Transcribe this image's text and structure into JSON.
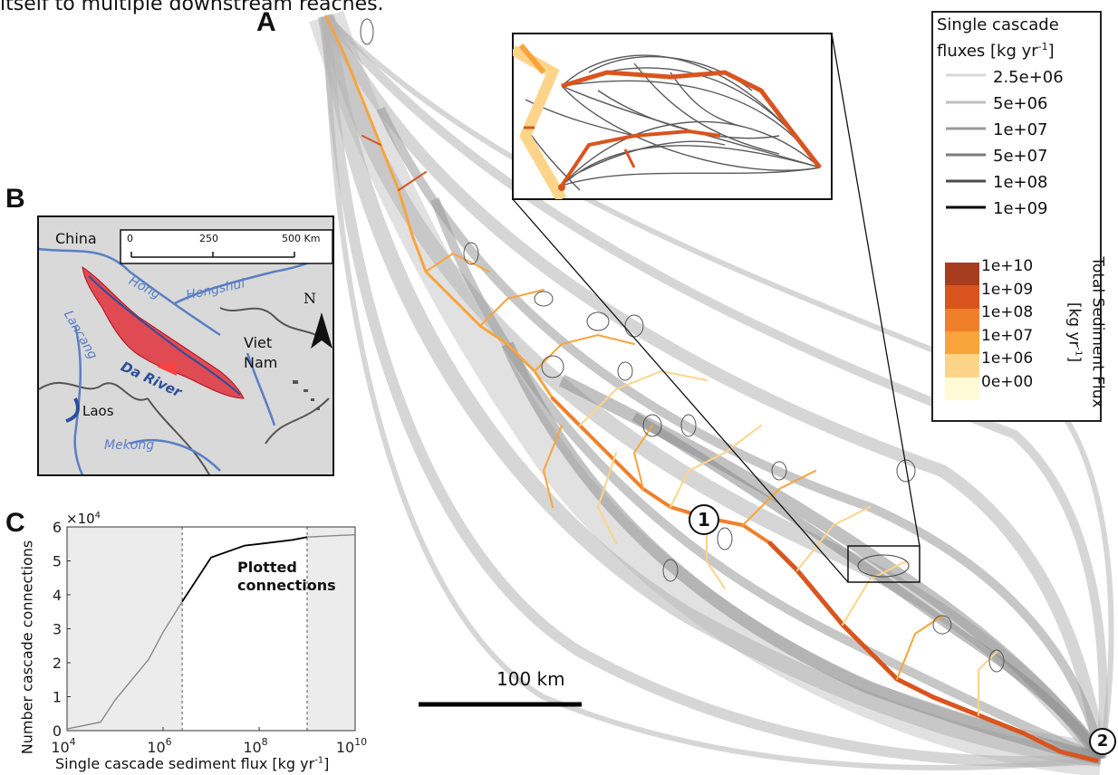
{
  "caption_line": "itself to multiple downstream reaches.",
  "panel_labels": {
    "a": "A",
    "b": "B",
    "c": "C"
  },
  "scale_bar_label": "100 km",
  "site_markers": [
    "1",
    "2"
  ],
  "legend_cascade": {
    "title_line1": "Single cascade",
    "title_line2": "fluxes [kg  yr",
    "title_sup": "-1",
    "title_end": "]",
    "entries": [
      {
        "label": "2.5e+06",
        "color": "#d9d9d9"
      },
      {
        "label": "5e+06",
        "color": "#bdbdbd"
      },
      {
        "label": "1e+07",
        "color": "#9a9a9a"
      },
      {
        "label": "5e+07",
        "color": "#7a7a7a"
      },
      {
        "label": "1e+08",
        "color": "#4a4a4a"
      },
      {
        "label": "1e+09",
        "color": "#000000"
      }
    ]
  },
  "legend_total": {
    "title": "Total Sediment Flux",
    "units": "[kg yr",
    "units_sup": "-1",
    "units_end": "]",
    "entries": [
      {
        "label": "1e+10",
        "color": "#a63d1e"
      },
      {
        "label": "1e+09",
        "color": "#d9541e"
      },
      {
        "label": "1e+08",
        "color": "#f07f2a"
      },
      {
        "label": "1e+07",
        "color": "#f9a43b"
      },
      {
        "label": "1e+06",
        "color": "#fdd48a"
      },
      {
        "label": "0e+00",
        "color": "#fffbd6"
      }
    ]
  },
  "map_b": {
    "scale_ticks": [
      "0",
      "250",
      "500 Km"
    ],
    "north": "N",
    "labels": {
      "china": "China",
      "hong": "Hong",
      "hongshui": "Hongshui",
      "lancang": "Lancang",
      "da_river": "Da River",
      "viet": "Viet",
      "nam": "Nam",
      "laos": "Laos",
      "mekong": "Mekong"
    }
  },
  "chart_data": {
    "type": "line",
    "xlabel": "Single cascade sediment flux [kg yr",
    "xlabel_sup": "-1",
    "xlabel_end": "]",
    "ylabel": "Number cascade connections",
    "exponent_label": "×10",
    "exponent_sup": "4",
    "x_scale": "log",
    "xlim": [
      10000,
      10000000000
    ],
    "ylim": [
      0,
      6
    ],
    "x_ticks": [
      {
        "base": "10",
        "exp": "4",
        "value": 10000
      },
      {
        "base": "10",
        "exp": "6",
        "value": 1000000
      },
      {
        "base": "10",
        "exp": "8",
        "value": 100000000
      },
      {
        "base": "10",
        "exp": "10",
        "value": 10000000000
      }
    ],
    "y_ticks": [
      "0",
      "1",
      "2",
      "3",
      "4",
      "5",
      "6"
    ],
    "plotted_range": [
      2500000,
      1000000000
    ],
    "annotation": "Plotted connections",
    "annotation_line1": "Plotted",
    "annotation_line2": "connections",
    "series": [
      {
        "x": [
          10000,
          50000,
          100000,
          500000,
          1000000,
          2500000,
          10000000,
          50000000,
          100000000,
          500000000,
          1000000000,
          10000000000
        ],
        "y": [
          0.05,
          0.25,
          0.9,
          2.1,
          2.9,
          3.8,
          5.1,
          5.45,
          5.5,
          5.62,
          5.7,
          5.77
        ]
      }
    ]
  }
}
